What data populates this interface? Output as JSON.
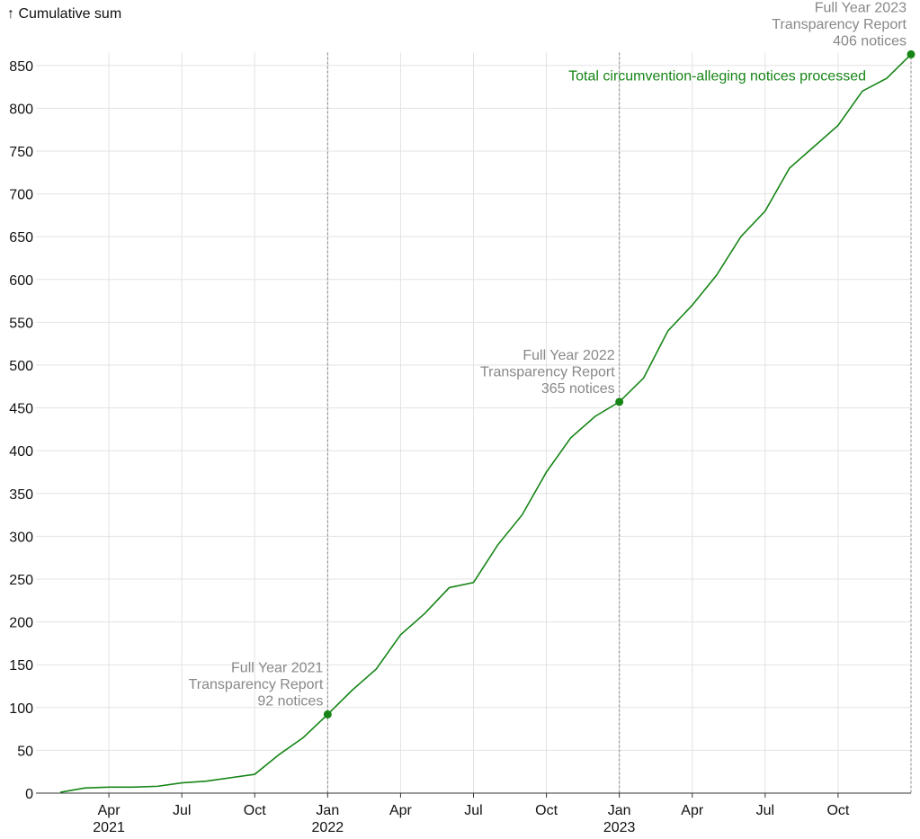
{
  "chart_data": {
    "type": "line",
    "y_label": "↑ Cumulative sum",
    "x": [
      "2021-01",
      "2021-02",
      "2021-03",
      "2021-04",
      "2021-05",
      "2021-06",
      "2021-07",
      "2021-08",
      "2021-09",
      "2021-10",
      "2021-11",
      "2021-12",
      "2022-01",
      "2022-02",
      "2022-03",
      "2022-04",
      "2022-05",
      "2022-06",
      "2022-07",
      "2022-08",
      "2022-09",
      "2022-10",
      "2022-11",
      "2022-12",
      "2023-01",
      "2023-02",
      "2023-03",
      "2023-04",
      "2023-05",
      "2023-06",
      "2023-07",
      "2023-08",
      "2023-09",
      "2023-10",
      "2023-11",
      "2023-12"
    ],
    "series": [
      {
        "name": "Total circumvention-alleging notices processed",
        "color": "#168516",
        "values": [
          1,
          6,
          7,
          7,
          8,
          12,
          14,
          18,
          22,
          45,
          65,
          92,
          120,
          145,
          185,
          210,
          240,
          246,
          290,
          325,
          375,
          415,
          440,
          457,
          485,
          540,
          570,
          605,
          650,
          680,
          730,
          755,
          780,
          820,
          835,
          863
        ]
      }
    ],
    "xlim": [
      "2021-01",
      "2023-12"
    ],
    "xticks": [
      {
        "value": "2021-04",
        "label": "Apr",
        "sublabel": "2021"
      },
      {
        "value": "2021-07",
        "label": "Jul"
      },
      {
        "value": "2021-10",
        "label": "Oct"
      },
      {
        "value": "2022-01",
        "label": "Jan",
        "sublabel": "2022"
      },
      {
        "value": "2022-04",
        "label": "Apr"
      },
      {
        "value": "2022-07",
        "label": "Jul"
      },
      {
        "value": "2022-10",
        "label": "Oct"
      },
      {
        "value": "2023-01",
        "label": "Jan",
        "sublabel": "2023"
      },
      {
        "value": "2023-04",
        "label": "Apr"
      },
      {
        "value": "2023-07",
        "label": "Jul"
      },
      {
        "value": "2023-10",
        "label": "Oct"
      }
    ],
    "ylim": [
      0,
      865
    ],
    "yticks": [
      0,
      50,
      100,
      150,
      200,
      250,
      300,
      350,
      400,
      450,
      500,
      550,
      600,
      650,
      700,
      750,
      800,
      850
    ],
    "grid": true,
    "annotations": [
      {
        "x": "2021-12",
        "y": 92,
        "lines": [
          "Full Year 2021",
          "Transparency Report",
          "92 notices"
        ]
      },
      {
        "x": "2022-12",
        "y": 457,
        "lines": [
          "Full Year 2022",
          "Transparency Report",
          "365 notices"
        ]
      },
      {
        "x": "2023-12",
        "y": 863,
        "lines": [
          "Full Year 2023",
          "Transparency Report",
          "406 notices"
        ]
      }
    ]
  }
}
